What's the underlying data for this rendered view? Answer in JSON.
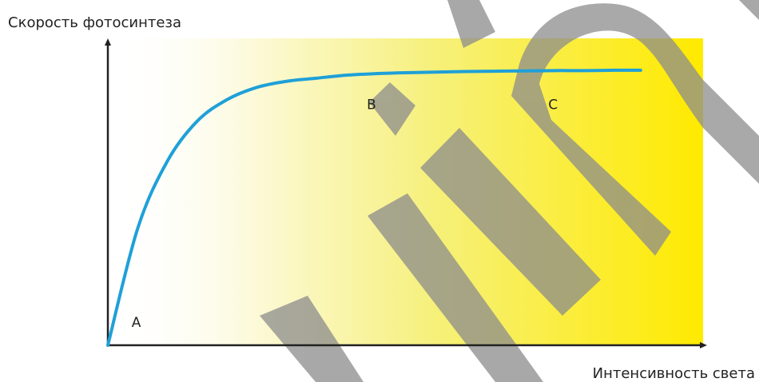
{
  "chart_data": {
    "type": "line",
    "title": "",
    "ylabel": "Скорость фотосинтеза",
    "xlabel": "Интенсивность света",
    "xlim": [
      0,
      10
    ],
    "ylim": [
      0,
      10
    ],
    "grid": false,
    "series": [
      {
        "color": "#1fa0d8",
        "x": [
          0,
          0.5,
          1,
          1.5,
          2,
          2.5,
          3,
          3.5,
          4,
          4.5,
          5,
          5.5,
          6,
          6.5,
          7,
          7.5,
          8,
          8.5,
          8.95
        ],
        "y": [
          0,
          3.8,
          6.0,
          7.3,
          8.0,
          8.4,
          8.6,
          8.7,
          8.8,
          8.85,
          8.88,
          8.9,
          8.92,
          8.93,
          8.94,
          8.95,
          8.95,
          8.96,
          8.96
        ]
      }
    ],
    "annotations": [
      {
        "text": "A",
        "x": 0.4,
        "y": 0.6
      },
      {
        "text": "B",
        "x": 4.35,
        "y": 7.7
      },
      {
        "text": "C",
        "x": 7.4,
        "y": 7.7
      }
    ],
    "background_gradient": [
      "#ffffff",
      "#ffeb00"
    ]
  }
}
